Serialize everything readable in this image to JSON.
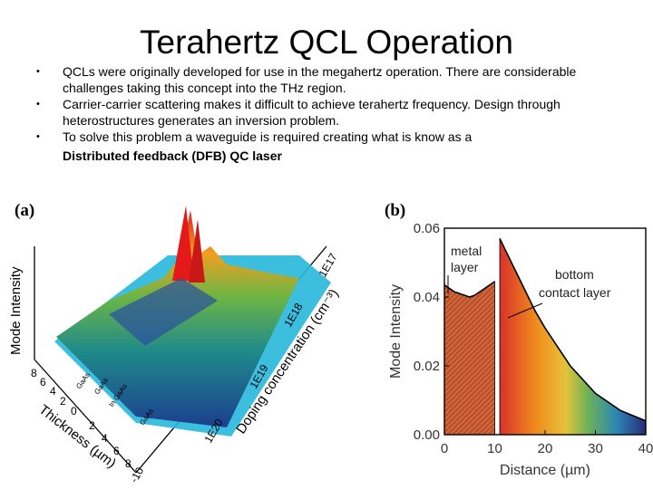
{
  "slide": {
    "title": "Terahertz QCL Operation",
    "bullets": [
      "QCLs were originally developed for use in the megahertz operation. There are considerable challenges taking this concept into the THz region.",
      "Carrier-carrier scattering makes it difficult to achieve terahertz frequency.   Design through heterostructures generates an inversion problem.",
      "To solve this problem a waveguide is required creating what is know as a"
    ],
    "bullet_emphasis": "Distributed feedback (DFB) QC laser"
  },
  "figure_a": {
    "panel_label": "(a)",
    "z_label": "Mode Intensity",
    "thickness_label": "Thickness (µm)",
    "thickness_ticks": [
      "8",
      "6",
      "4",
      "2",
      "0",
      "2",
      "4",
      "6",
      "8",
      "-10"
    ],
    "doping_label": "Doping concentration (cm⁻³)",
    "doping_ticks": [
      "1E20",
      "1E19",
      "1E18",
      "1E17"
    ],
    "material_labels": [
      "GaAs",
      "GaAs",
      "In GaAs",
      "GaAs"
    ]
  },
  "chart_data": {
    "type": "area",
    "panel_label": "(b)",
    "title": "",
    "xlabel": "Distance (µm)",
    "ylabel": "Mode Intensity",
    "xlim": [
      0,
      40
    ],
    "ylim": [
      0,
      0.06
    ],
    "x_ticks": [
      "0",
      "10",
      "20",
      "30",
      "40"
    ],
    "y_ticks": [
      "0.00",
      "0.02",
      "0.04",
      "0.06"
    ],
    "annotations": [
      {
        "text_lines": [
          "metal",
          "layer"
        ]
      },
      {
        "text_lines": [
          "bottom",
          "contact layer"
        ]
      }
    ],
    "series": [
      {
        "name": "metal layer region",
        "x": [
          0,
          2,
          4,
          5,
          6,
          8,
          10
        ],
        "y": [
          0.0435,
          0.0415,
          0.0405,
          0.04,
          0.0405,
          0.0425,
          0.0445
        ]
      },
      {
        "name": "bottom contact layer region",
        "x": [
          11,
          12,
          14,
          16,
          18,
          20,
          25,
          30,
          35,
          40
        ],
        "y": [
          0.057,
          0.054,
          0.048,
          0.042,
          0.036,
          0.031,
          0.02,
          0.012,
          0.007,
          0.004
        ]
      }
    ]
  }
}
